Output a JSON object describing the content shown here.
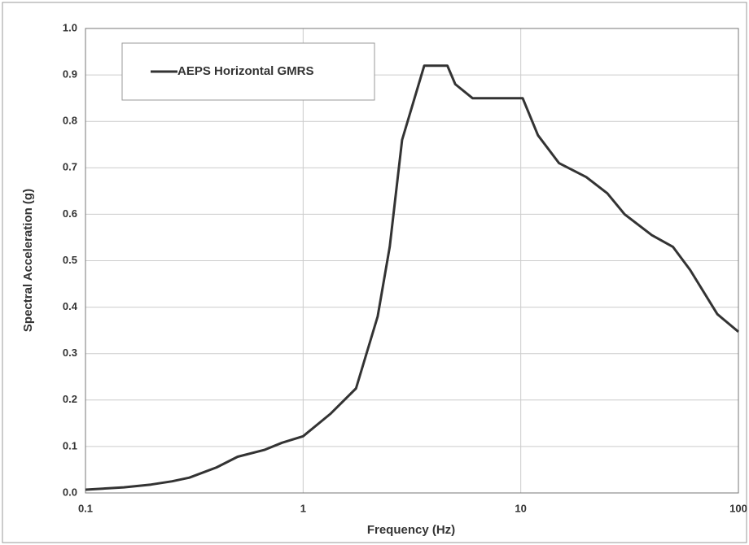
{
  "chart_data": {
    "type": "line",
    "x_label": "Frequency (Hz)",
    "y_label": "Spectral Acceleration (g)",
    "x": [
      0.1,
      0.15,
      0.2,
      0.25,
      0.3,
      0.4,
      0.5,
      0.667,
      0.8,
      1,
      1.333,
      1.75,
      2.2,
      2.5,
      2.85,
      3.6,
      4.6,
      5,
      6,
      10.2,
      12,
      15,
      20,
      25,
      30,
      40,
      50,
      60,
      80,
      100
    ],
    "series": [
      {
        "name": "AEPS Horizontal GMRS",
        "color": "#333333",
        "values": [
          0.007,
          0.012,
          0.018,
          0.025,
          0.033,
          0.055,
          0.078,
          0.093,
          0.108,
          0.122,
          0.17,
          0.225,
          0.38,
          0.53,
          0.76,
          0.92,
          0.92,
          0.88,
          0.85,
          0.85,
          0.77,
          0.71,
          0.68,
          0.645,
          0.6,
          0.555,
          0.53,
          0.48,
          0.385,
          0.347
        ]
      }
    ],
    "xscale": "log",
    "xlim": [
      0.1,
      100
    ],
    "xticks": [
      0.1,
      1,
      10,
      100
    ],
    "ylim": [
      0,
      1
    ],
    "yticks": [
      {
        "value": 0,
        "label": "0.0"
      },
      0.1,
      0.2,
      0.3,
      0.4,
      0.5,
      0.6,
      0.7,
      0.8,
      0.9,
      {
        "value": 1,
        "label": "1.0"
      }
    ],
    "grid": true,
    "legend": "top-left"
  }
}
